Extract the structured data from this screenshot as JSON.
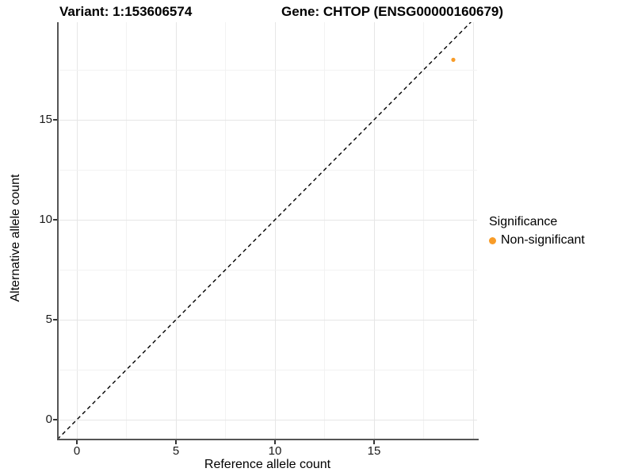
{
  "header": {
    "variant_title": "Variant: 1:153606574",
    "gene_title": "Gene: CHTOP (ENSG00000160679)"
  },
  "chart_data": {
    "type": "scatter",
    "xlabel": "Reference allele count",
    "ylabel": "Alternative allele count",
    "xlim": [
      -1,
      20.3
    ],
    "ylim": [
      -1,
      19.9
    ],
    "x_ticks": [
      0,
      5,
      10,
      15
    ],
    "y_ticks": [
      0,
      5,
      10,
      15
    ],
    "x_grid_major": [
      0,
      5,
      10,
      15,
      20
    ],
    "x_grid_minor": [
      2.5,
      7.5,
      12.5,
      17.5
    ],
    "y_grid_major": [
      0,
      5,
      10,
      15
    ],
    "y_grid_minor": [
      2.5,
      7.5,
      12.5,
      17.5
    ],
    "grid": true,
    "identity_line": {
      "slope": 1,
      "intercept": 0,
      "style": "dashed",
      "color": "#000000"
    },
    "series": [
      {
        "name": "Non-significant",
        "color": "#F89C28",
        "point_radius": 2.6,
        "points": [
          {
            "x": 19,
            "y": 18
          }
        ]
      }
    ],
    "legend": {
      "title": "Significance",
      "position": "right",
      "entries": [
        {
          "label": "Non-significant",
          "color": "#F89C28"
        }
      ]
    }
  },
  "colors": {
    "axis_line": "#555555",
    "grid_major": "#e6e6e6",
    "grid_minor": "#f2f2f2",
    "point_orange": "#F89C28"
  }
}
